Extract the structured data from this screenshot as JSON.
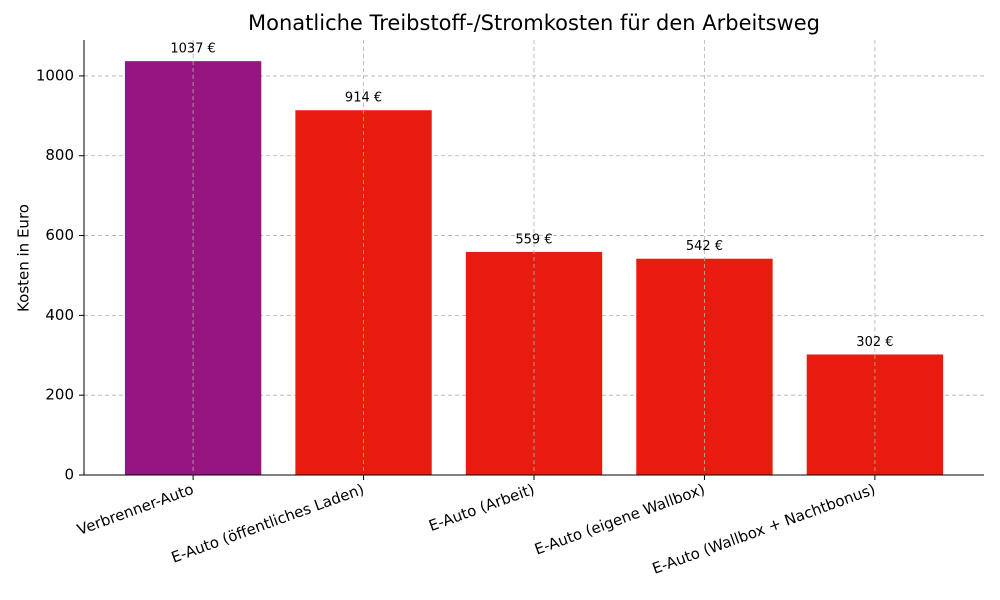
{
  "chart_data": {
    "type": "bar",
    "title": "Monatliche Treibstoff-/Stromkosten für den Arbeitsweg",
    "y_label": "Kosten in Euro",
    "categories": [
      "Verbrenner-Auto",
      "E-Auto (öffentliches Laden)",
      "E-Auto (Arbeit)",
      "E-Auto (eigene Wallbox)",
      "E-Auto (Wallbox + Nachtbonus)"
    ],
    "values": [
      1037,
      914,
      559,
      542,
      302
    ],
    "value_labels": [
      "1037 €",
      "914 €",
      "559 €",
      "542 €",
      "302 €"
    ],
    "colors": [
      "#96157f",
      "#e81c0e",
      "#e81c0e",
      "#e81c0e",
      "#e81c0e"
    ],
    "ylim": [
      0,
      1090
    ],
    "yticks": [
      0,
      200,
      400,
      600,
      800,
      1000
    ],
    "grid": true
  }
}
